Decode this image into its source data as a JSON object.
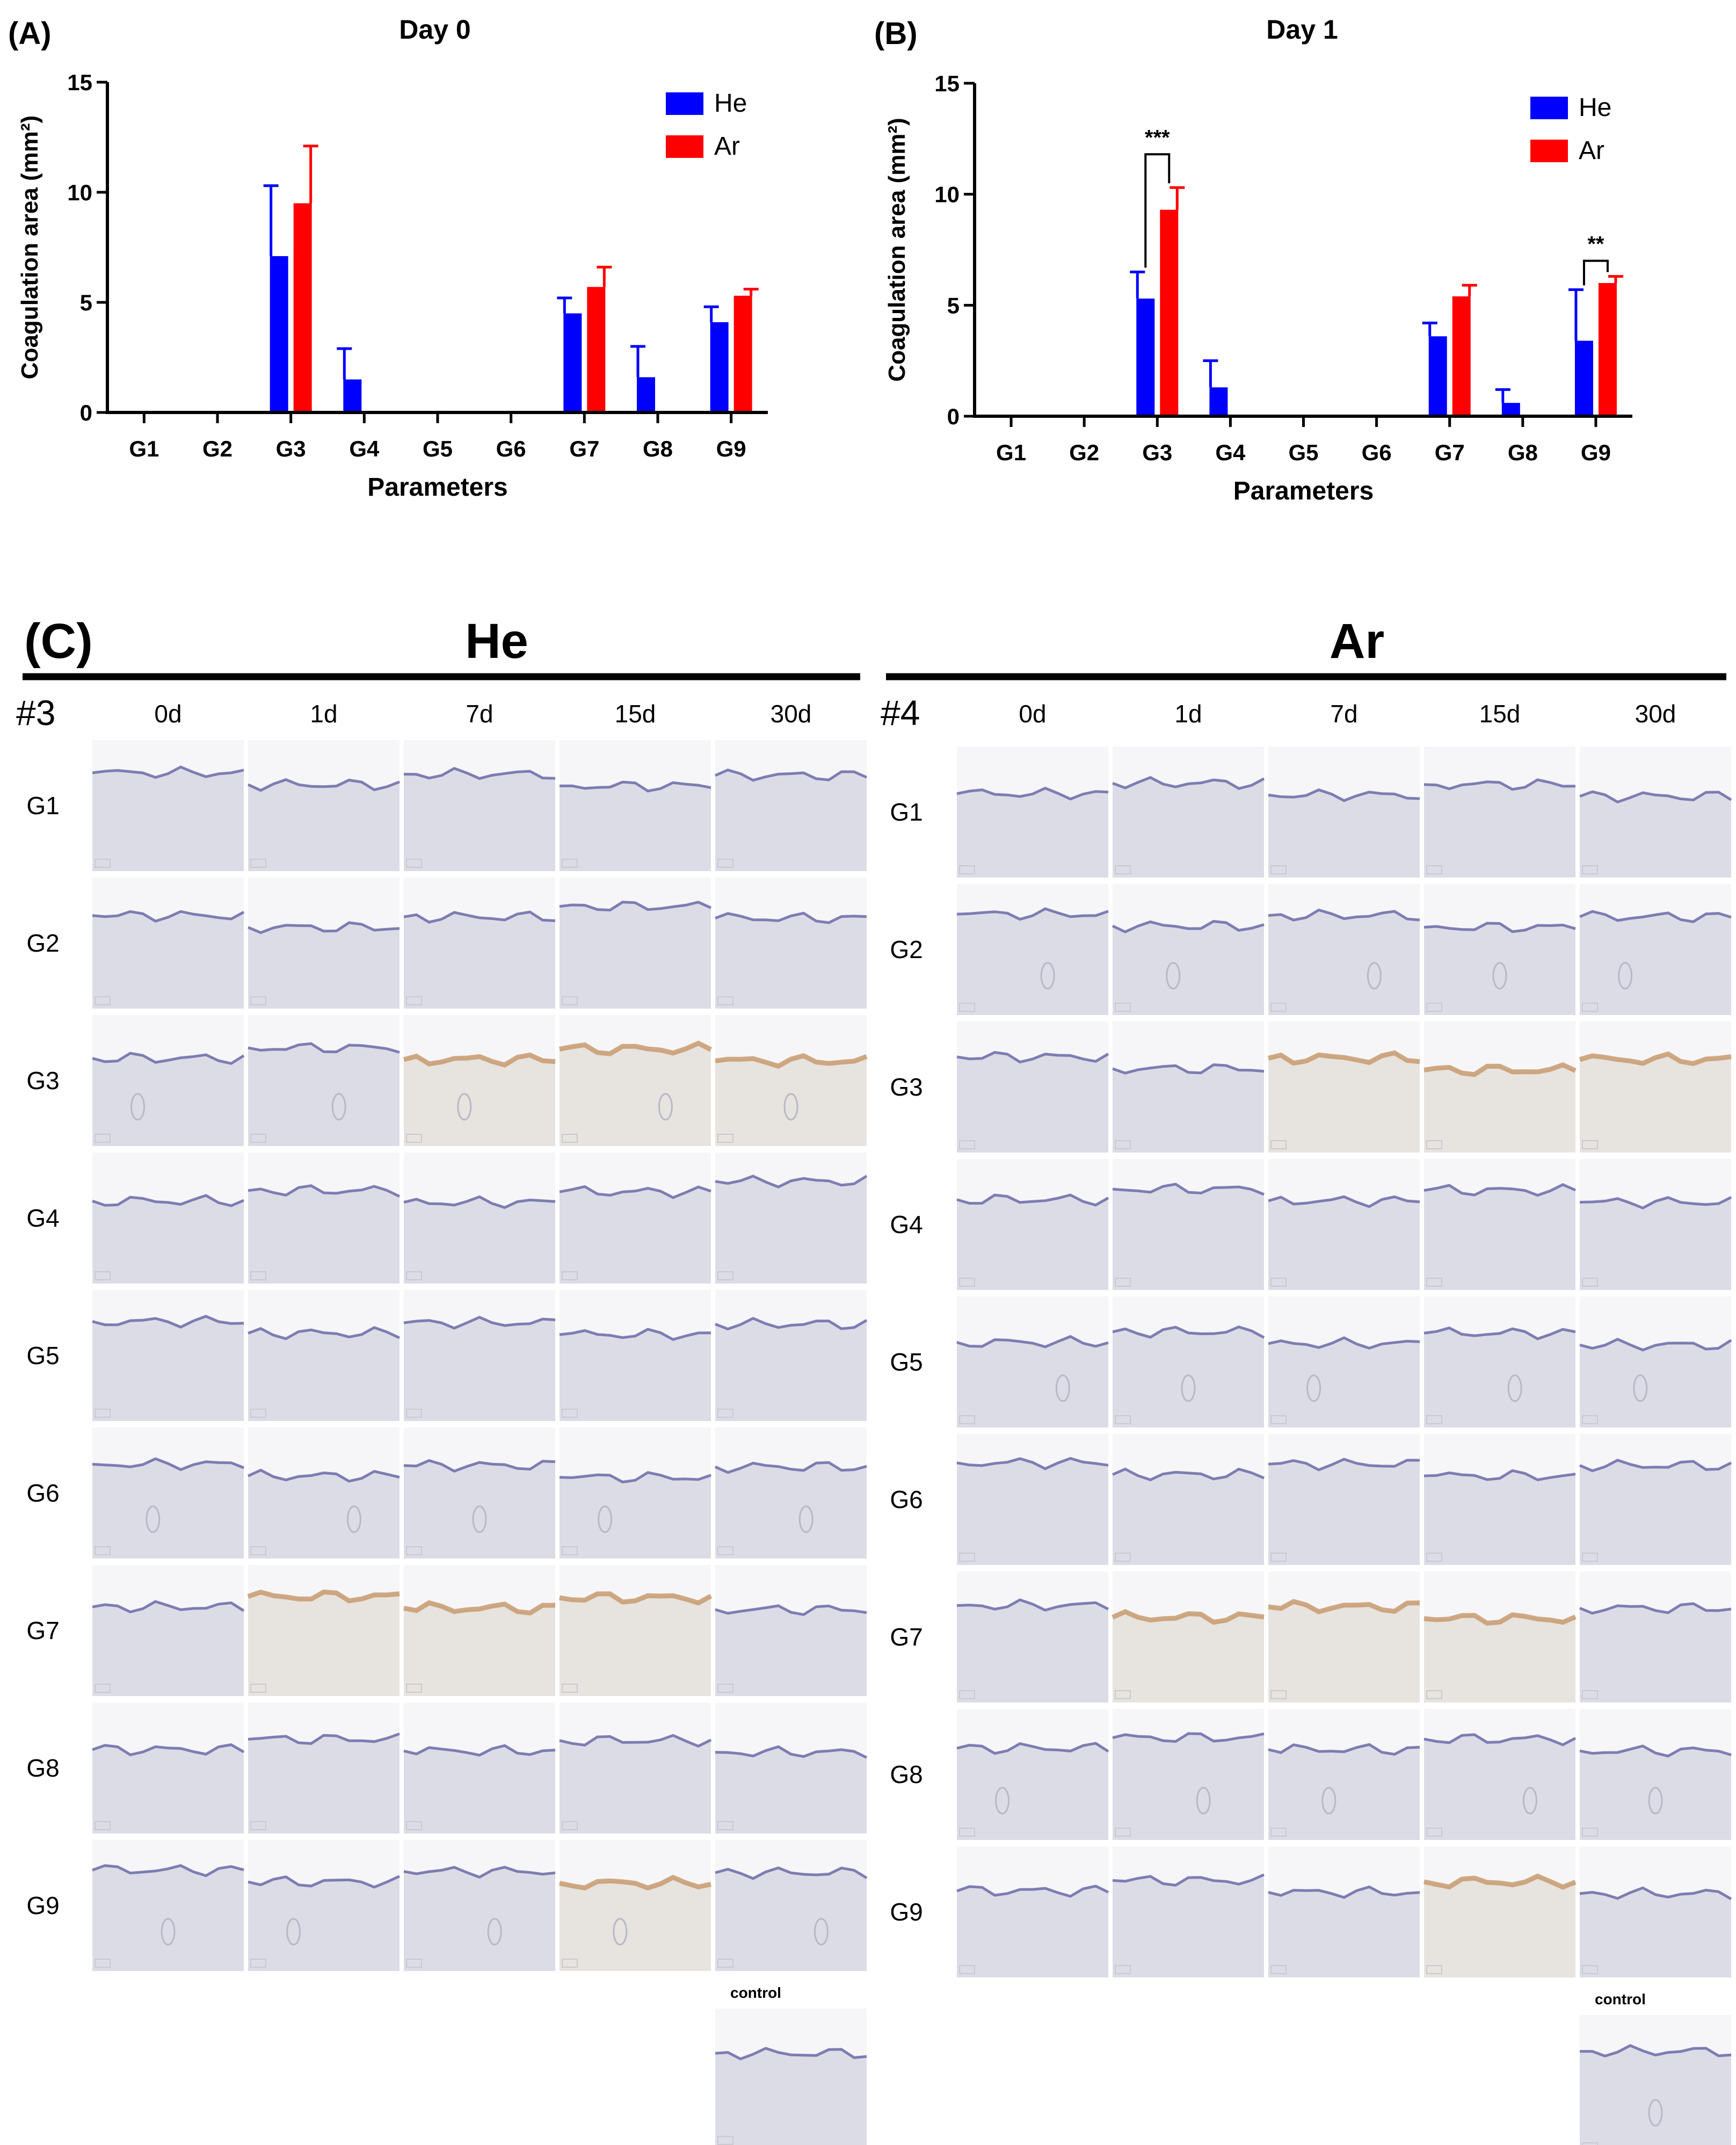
{
  "chart_data": [
    {
      "panel_label": "(A)",
      "type": "bar",
      "title": "Day 0",
      "xlabel": "Parameters",
      "ylabel": "Coagulation area (mm²)",
      "ylim": [
        0,
        15
      ],
      "yticks": [
        0,
        5,
        10,
        15
      ],
      "categories": [
        "G1",
        "G2",
        "G3",
        "G4",
        "G5",
        "G6",
        "G7",
        "G8",
        "G9"
      ],
      "legend_position": "top-right",
      "series": [
        {
          "name": "He",
          "color": "#0000FF",
          "values": [
            0,
            0,
            7.1,
            1.5,
            0,
            0,
            4.5,
            1.6,
            4.1
          ],
          "errors": [
            0,
            0,
            3.2,
            1.4,
            0,
            0,
            0.7,
            1.4,
            0.7
          ]
        },
        {
          "name": "Ar",
          "color": "#FF0000",
          "values": [
            0,
            0,
            9.5,
            0,
            0,
            0,
            5.7,
            0,
            5.3
          ],
          "errors": [
            0,
            0,
            2.6,
            0,
            0,
            0,
            0.9,
            0,
            0.3
          ]
        }
      ],
      "annotations": []
    },
    {
      "panel_label": "(B)",
      "type": "bar",
      "title": "Day 1",
      "xlabel": "Parameters",
      "ylabel": "Coagulation area (mm²)",
      "ylim": [
        0,
        15
      ],
      "yticks": [
        0,
        5,
        10,
        15
      ],
      "categories": [
        "G1",
        "G2",
        "G3",
        "G4",
        "G5",
        "G6",
        "G7",
        "G8",
        "G9"
      ],
      "legend_position": "top-right",
      "series": [
        {
          "name": "He",
          "color": "#0000FF",
          "values": [
            0,
            0,
            5.3,
            1.3,
            0,
            0,
            3.6,
            0.6,
            3.4
          ],
          "errors": [
            0,
            0,
            1.2,
            1.2,
            0,
            0,
            0.6,
            0.6,
            2.3
          ]
        },
        {
          "name": "Ar",
          "color": "#FF0000",
          "values": [
            0,
            0,
            9.3,
            0,
            0,
            0,
            5.4,
            0,
            6.0
          ],
          "errors": [
            0,
            0,
            1.0,
            0,
            0,
            0,
            0.5,
            0,
            0.3
          ]
        }
      ],
      "annotations": [
        {
          "category": "G3",
          "text": "***",
          "y": 11.8
        },
        {
          "category": "G9",
          "text": "**",
          "y": 7.0
        }
      ]
    }
  ],
  "panel_c": {
    "label": "(C)",
    "groups": [
      {
        "title": "He",
        "sample": "#3"
      },
      {
        "title": "Ar",
        "sample": "#4"
      }
    ],
    "timepoints": [
      "0d",
      "1d",
      "7d",
      "15d",
      "30d"
    ],
    "rows": [
      "G1",
      "G2",
      "G3",
      "G4",
      "G5",
      "G6",
      "G7",
      "G8",
      "G9"
    ],
    "control_label": "control",
    "tissue_colors": {
      "background": "#e9e8ee",
      "dermis": "#dcdce6",
      "epidermis": "#6a6aa8",
      "scab": "#c79a6e"
    }
  }
}
